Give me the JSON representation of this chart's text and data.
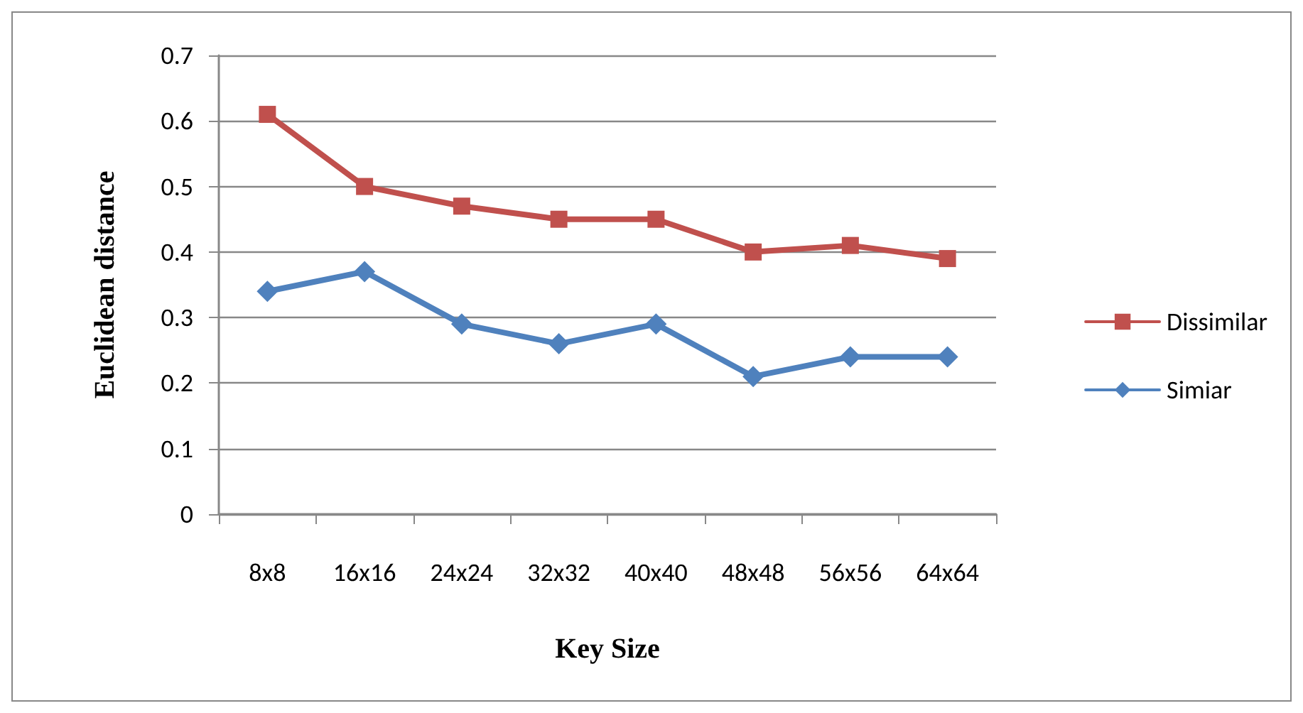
{
  "chart_data": {
    "type": "line",
    "xlabel": "Key Size",
    "ylabel": "Euclidean distance",
    "categories": [
      "8x8",
      "16x16",
      "24x24",
      "32x32",
      "40x40",
      "48x48",
      "56x56",
      "64x64"
    ],
    "series": [
      {
        "name": "Dissimilar",
        "color": "#c0504d",
        "marker": "square",
        "values": [
          0.61,
          0.5,
          0.47,
          0.45,
          0.45,
          0.4,
          0.41,
          0.39
        ]
      },
      {
        "name": "Simiar",
        "color": "#4f81bd",
        "marker": "diamond",
        "values": [
          0.34,
          0.37,
          0.29,
          0.26,
          0.29,
          0.21,
          0.24,
          0.24
        ]
      }
    ],
    "ylim": [
      0,
      0.7
    ],
    "yticks": [
      0,
      0.1,
      0.2,
      0.3,
      0.4,
      0.5,
      0.6,
      0.7
    ],
    "grid": "y",
    "legend": "right",
    "line_style": "solid"
  }
}
